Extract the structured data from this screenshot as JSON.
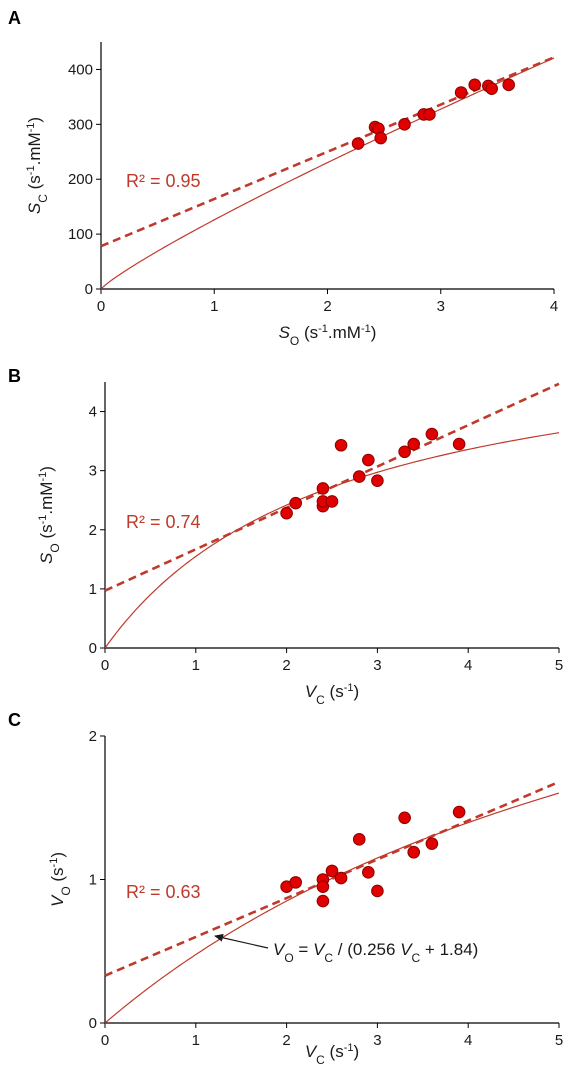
{
  "colors": {
    "fit": "#c0392b",
    "point": "#e00000",
    "point_edge": "#8b0000",
    "axis": "#000000"
  },
  "chart_data": [
    {
      "panel": "A",
      "type": "scatter",
      "xlabel_parts": {
        "var": "S",
        "sub": "O",
        "unit_pre": " (s",
        "unit_sup": "-1",
        "unit_post": ".mM",
        "unit_sup2": "-1",
        "unit_end": ")"
      },
      "ylabel_parts": {
        "var": "S",
        "sub": "C",
        "unit_pre": " (s",
        "unit_sup": "-1",
        "unit_post": ".mM",
        "unit_sup2": "-1",
        "unit_end": ")"
      },
      "xlim": [
        0,
        4
      ],
      "ylim": [
        0,
        450
      ],
      "xticks": [
        "0",
        "1",
        "2",
        "3",
        "4"
      ],
      "xtick_values": [
        0,
        1,
        2,
        3,
        4
      ],
      "yticks": [
        "0",
        "100",
        "200",
        "300",
        "400"
      ],
      "ytick_values": [
        0,
        100,
        200,
        300,
        400
      ],
      "r2_label": "R² = 0.95",
      "linear_fit": {
        "slope": 86,
        "intercept": 78
      },
      "curve": {
        "type": "power",
        "a": 126,
        "b": 0.87
      },
      "points": [
        {
          "x": 2.27,
          "y": 265
        },
        {
          "x": 2.42,
          "y": 295
        },
        {
          "x": 2.45,
          "y": 292
        },
        {
          "x": 2.47,
          "y": 275
        },
        {
          "x": 2.68,
          "y": 300
        },
        {
          "x": 2.85,
          "y": 318
        },
        {
          "x": 2.9,
          "y": 318
        },
        {
          "x": 3.18,
          "y": 358
        },
        {
          "x": 3.3,
          "y": 372
        },
        {
          "x": 3.42,
          "y": 370
        },
        {
          "x": 3.45,
          "y": 365
        },
        {
          "x": 3.6,
          "y": 372
        }
      ]
    },
    {
      "panel": "B",
      "type": "scatter",
      "xlabel_parts": {
        "var": "V",
        "sub": "C",
        "unit_pre": " (s",
        "unit_sup": "-1",
        "unit_post": "",
        "unit_sup2": "",
        "unit_end": ")"
      },
      "ylabel_parts": {
        "var": "S",
        "sub": "O",
        "unit_pre": " (s",
        "unit_sup": "-1",
        "unit_post": ".mM",
        "unit_sup2": "-1",
        "unit_end": ")"
      },
      "xlim": [
        0,
        5
      ],
      "ylim": [
        0,
        4.5
      ],
      "xticks": [
        "0",
        "1",
        "2",
        "3",
        "4",
        "5"
      ],
      "xtick_values": [
        0,
        1,
        2,
        3,
        4,
        5
      ],
      "yticks": [
        "0",
        "1",
        "2",
        "3",
        "4"
      ],
      "ytick_values": [
        0,
        1,
        2,
        3,
        4
      ],
      "r2_label": "R² = 0.74",
      "linear_fit": {
        "slope": 0.7,
        "intercept": 0.97
      },
      "curve": {
        "type": "hyperbola",
        "vmax": 5.5,
        "k": 2.55
      },
      "points": [
        {
          "x": 2.0,
          "y": 2.28
        },
        {
          "x": 2.1,
          "y": 2.45
        },
        {
          "x": 2.4,
          "y": 2.4
        },
        {
          "x": 2.4,
          "y": 2.48
        },
        {
          "x": 2.4,
          "y": 2.7
        },
        {
          "x": 2.5,
          "y": 2.48
        },
        {
          "x": 2.6,
          "y": 3.43
        },
        {
          "x": 2.8,
          "y": 2.9
        },
        {
          "x": 2.9,
          "y": 3.18
        },
        {
          "x": 3.0,
          "y": 2.83
        },
        {
          "x": 3.3,
          "y": 3.32
        },
        {
          "x": 3.4,
          "y": 3.45
        },
        {
          "x": 3.6,
          "y": 3.62
        },
        {
          "x": 3.9,
          "y": 3.45
        }
      ]
    },
    {
      "panel": "C",
      "type": "scatter",
      "xlabel_parts": {
        "var": "V",
        "sub": "C",
        "unit_pre": " (s",
        "unit_sup": "-1",
        "unit_post": "",
        "unit_sup2": "",
        "unit_end": ")"
      },
      "ylabel_parts": {
        "var": "V",
        "sub": "O",
        "unit_pre": " (s",
        "unit_sup": "-1",
        "unit_post": "",
        "unit_sup2": "",
        "unit_end": ")"
      },
      "xlim": [
        0,
        5
      ],
      "ylim": [
        0,
        2
      ],
      "xticks": [
        "0",
        "1",
        "2",
        "3",
        "4",
        "5"
      ],
      "xtick_values": [
        0,
        1,
        2,
        3,
        4,
        5
      ],
      "yticks": [
        "0",
        "1",
        "2"
      ],
      "ytick_values": [
        0,
        1,
        2
      ],
      "r2_label": "R² = 0.63",
      "linear_fit": {
        "slope": 0.27,
        "intercept": 0.33
      },
      "curve": {
        "type": "hyperbola",
        "vmax": 3.906,
        "k": 7.19
      },
      "annotation": "VO = VC / (0.256 VC + 1.84)",
      "annotation_parts": {
        "v1": "V",
        "s1": "O",
        "mid": " = ",
        "v2": "V",
        "s2": "C",
        "mid2": " / (0.256 ",
        "v3": "V",
        "s3": "C",
        "end": " + 1.84)"
      },
      "points": [
        {
          "x": 2.0,
          "y": 0.95
        },
        {
          "x": 2.1,
          "y": 0.98
        },
        {
          "x": 2.4,
          "y": 1.0
        },
        {
          "x": 2.4,
          "y": 0.95
        },
        {
          "x": 2.4,
          "y": 0.85
        },
        {
          "x": 2.5,
          "y": 1.06
        },
        {
          "x": 2.6,
          "y": 1.01
        },
        {
          "x": 2.8,
          "y": 1.28
        },
        {
          "x": 2.9,
          "y": 1.05
        },
        {
          "x": 3.0,
          "y": 0.92
        },
        {
          "x": 3.3,
          "y": 1.43
        },
        {
          "x": 3.4,
          "y": 1.19
        },
        {
          "x": 3.6,
          "y": 1.25
        },
        {
          "x": 3.9,
          "y": 1.47
        }
      ]
    }
  ]
}
